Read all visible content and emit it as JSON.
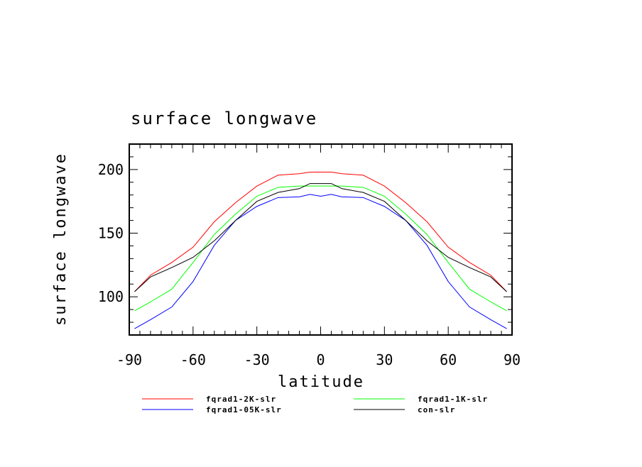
{
  "chart_data": {
    "type": "line",
    "title": "surface longwave",
    "xlabel": "latitude",
    "ylabel": "surface longwave",
    "xlim": [
      -90,
      90
    ],
    "ylim": [
      70,
      220
    ],
    "xticks": [
      -90,
      -60,
      -30,
      0,
      30,
      60,
      90
    ],
    "yticks": [
      100,
      150,
      200
    ],
    "xtick_labels": [
      "-90",
      "-60",
      "-30",
      "0",
      "30",
      "60",
      "90"
    ],
    "ytick_labels": [
      "100",
      "150",
      "200"
    ],
    "grid": false,
    "legend_position": "bottom",
    "x": [
      -87.5,
      -80,
      -70,
      -60,
      -50,
      -40,
      -30,
      -20,
      -10,
      -5,
      0,
      5,
      10,
      20,
      30,
      40,
      50,
      60,
      70,
      80,
      87.5
    ],
    "series": [
      {
        "name": "fqrad1-2K-slr",
        "color": "#ff0000",
        "values": [
          104,
          117,
          127,
          139,
          159,
          174,
          187,
          195.6,
          196.7,
          198,
          198,
          198,
          196.7,
          195.6,
          187,
          174,
          159,
          139,
          127,
          117,
          104
        ]
      },
      {
        "name": "fqrad1-1K-slr",
        "color": "#00ff00",
        "values": [
          89,
          96,
          106,
          127,
          149,
          165,
          179,
          186,
          187,
          187,
          187,
          187,
          187,
          186,
          179,
          165,
          149,
          127,
          106,
          96,
          89
        ]
      },
      {
        "name": "fqrad1-05K-slr",
        "color": "#0000ff",
        "values": [
          75,
          82,
          92,
          112,
          140.5,
          160,
          171,
          178,
          178.5,
          180.5,
          179,
          180.5,
          178.5,
          178,
          171,
          160,
          140.5,
          112,
          92,
          82,
          75
        ]
      },
      {
        "name": "con-slr",
        "color": "#000000",
        "values": [
          104,
          115.6,
          123,
          131,
          144,
          160,
          175,
          182,
          185,
          189,
          189,
          189,
          185,
          182,
          175,
          160,
          144,
          131,
          123,
          115.6,
          104
        ]
      }
    ]
  }
}
